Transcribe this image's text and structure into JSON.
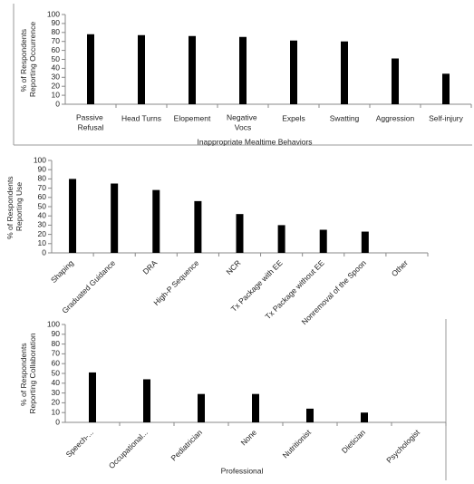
{
  "chart_data": [
    {
      "type": "bar",
      "y_label": "% of Respondents Reporting Occurrence",
      "x_label": "Inappropriate Mealtime Behaviors",
      "categories": [
        "Passive Refusal",
        "Head Turns",
        "Elopement",
        "Negative Vocs",
        "Expels",
        "Swatting",
        "Aggression",
        "Self-injury"
      ],
      "values": [
        78,
        77,
        76,
        75,
        71,
        70,
        51,
        34
      ],
      "color": "#000000",
      "ylim": [
        0,
        100
      ],
      "yticks": [
        0,
        10,
        20,
        30,
        40,
        50,
        60,
        70,
        80,
        90,
        100
      ],
      "label_rotation": 0
    },
    {
      "type": "bar",
      "y_label": "% of Respondents Reporting Use",
      "categories": [
        "Shaping",
        "Graduated Guidance",
        "DRA",
        "High-P Sequence",
        "NCR",
        "Tx Package with EE",
        "Tx Package without EE",
        "Nonremoval of the Spoon",
        "Other"
      ],
      "values": [
        80,
        75,
        68,
        56,
        42,
        30,
        25,
        23,
        0
      ],
      "color": "#000000",
      "ylim": [
        0,
        100
      ],
      "yticks": [
        0,
        10,
        20,
        30,
        40,
        50,
        60,
        70,
        80,
        90,
        100
      ],
      "label_rotation": -45
    },
    {
      "type": "bar",
      "y_label": "% of Respondents Reporting Collaboration",
      "x_label": "Professional",
      "categories": [
        "Speech-...",
        "Occupational...",
        "Pediatrician",
        "None",
        "Nutritionist",
        "Dietician",
        "Psychologist"
      ],
      "values": [
        51,
        44,
        29,
        29,
        14,
        10,
        0
      ],
      "color": "#000000",
      "ylim": [
        0,
        100
      ],
      "yticks": [
        0,
        10,
        20,
        30,
        40,
        50,
        60,
        70,
        80,
        90,
        100
      ],
      "label_rotation": -45
    }
  ]
}
